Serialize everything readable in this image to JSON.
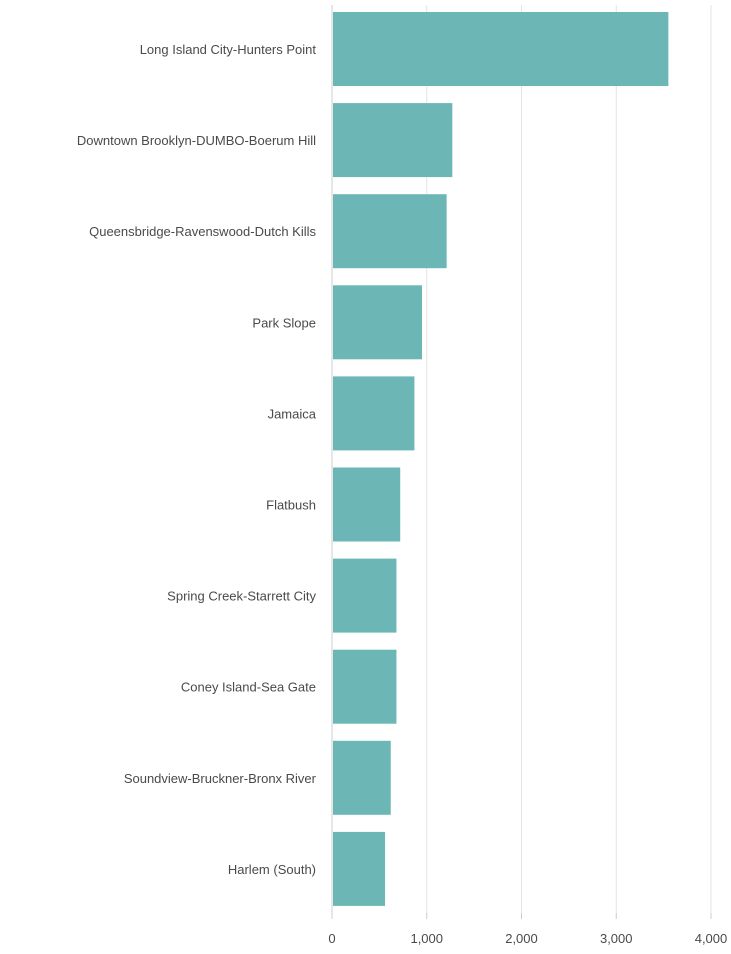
{
  "chart_data": {
    "type": "bar",
    "orientation": "horizontal",
    "categories": [
      "Long Island City-Hunters Point",
      "Downtown Brooklyn-DUMBO-Boerum Hill",
      "Queensbridge-Ravenswood-Dutch Kills",
      "Park Slope",
      "Jamaica",
      "Flatbush",
      "Spring Creek-Starrett City",
      "Coney Island-Sea Gate",
      "Soundview-Bruckner-Bronx River",
      "Harlem (South)"
    ],
    "values": [
      3550,
      1270,
      1210,
      950,
      870,
      720,
      680,
      680,
      620,
      560
    ],
    "xlim": [
      0,
      4000
    ],
    "x_ticks": [
      0,
      1000,
      2000,
      3000,
      4000
    ],
    "x_tick_labels": [
      "0",
      "1,000",
      "2,000",
      "3,000",
      "4,000"
    ],
    "title": "",
    "xlabel": "",
    "ylabel": "",
    "grid": true,
    "legend": "none",
    "bar_color": "#6cb7b5",
    "grid_color": "#e3e3e3",
    "axis_color": "#cccccc",
    "text_color": "#4a4a4a"
  }
}
